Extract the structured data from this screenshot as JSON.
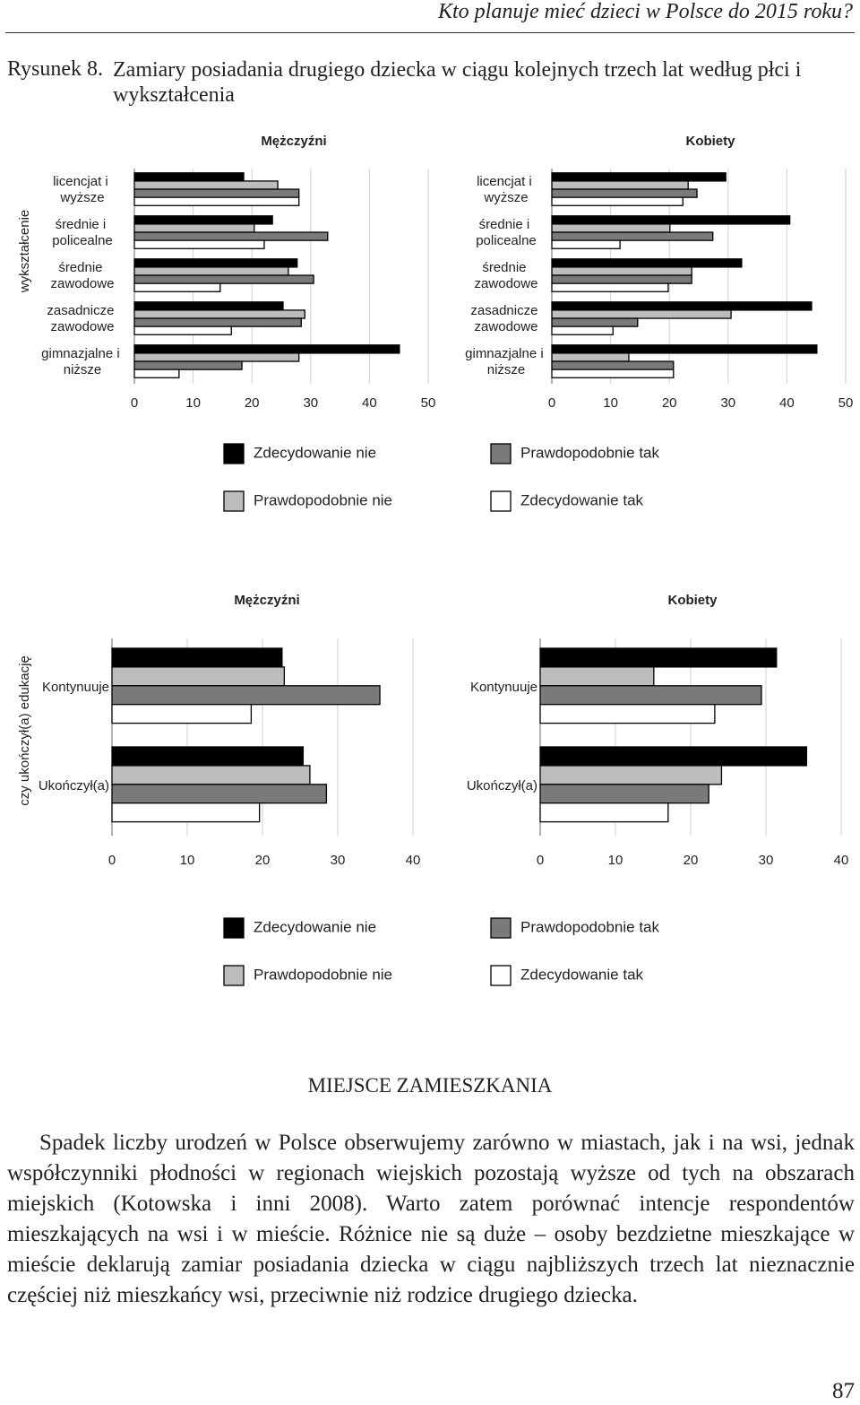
{
  "header": {
    "title": "Kto planuje mieć dzieci w Polsce do 2015 roku?"
  },
  "figure": {
    "label": "Rysunek 8.",
    "caption": "Zamiary posiadania drugiego dziecka w ciągu kolejnych trzech lat według płci i wykształcenia"
  },
  "chart_data": [
    {
      "type": "bar",
      "orientation": "horizontal",
      "y_label": "wykształcenie",
      "grid": true,
      "xlim": [
        0,
        50
      ],
      "xticks": [
        0,
        10,
        20,
        30,
        40,
        50
      ],
      "series": [
        {
          "name": "Zdecydowanie nie",
          "color": "#000000"
        },
        {
          "name": "Prawdopodobnie nie",
          "color": "#bdbdbd"
        },
        {
          "name": "Prawdopodobnie tak",
          "color": "#7a7a7a"
        },
        {
          "name": "Zdecydowanie tak",
          "color": "#ffffff"
        }
      ],
      "panels": [
        {
          "title": "Mężczyźni",
          "categories": [
            "licencjat i wyższe",
            "średnie i policealne",
            "średnie zawodowe",
            "zasadnicze zawodowe",
            "gimnazjalne i niższe"
          ],
          "values": [
            [
              18.6,
              23.5,
              27.7,
              25.3,
              45.1
            ],
            [
              24.4,
              20.4,
              26.2,
              29.0,
              28.0
            ],
            [
              28.0,
              32.9,
              30.5,
              28.4,
              18.3
            ],
            [
              28.0,
              22.1,
              14.6,
              16.5,
              7.6
            ]
          ]
        },
        {
          "title": "Kobiety",
          "categories": [
            "licencjat i wyższe",
            "średnie i policealne",
            "średnie zawodowe",
            "zasadnicze zawodowe",
            "gimnazjalne i niższe"
          ],
          "values": [
            [
              29.6,
              40.5,
              32.3,
              44.2,
              45.1
            ],
            [
              23.2,
              20.1,
              23.8,
              30.5,
              13.1
            ],
            [
              24.7,
              27.4,
              23.8,
              14.6,
              20.7
            ],
            [
              22.3,
              11.6,
              19.8,
              10.4,
              20.7
            ]
          ]
        }
      ]
    },
    {
      "type": "bar",
      "orientation": "horizontal",
      "y_label": "czy ukończył(a) edukację",
      "grid": true,
      "xlim": [
        0,
        40
      ],
      "xticks": [
        0,
        10,
        20,
        30,
        40
      ],
      "series": [
        {
          "name": "Zdecydowanie nie",
          "color": "#000000"
        },
        {
          "name": "Prawdopodobnie nie",
          "color": "#bdbdbd"
        },
        {
          "name": "Prawdopodobnie tak",
          "color": "#7a7a7a"
        },
        {
          "name": "Zdecydowanie tak",
          "color": "#ffffff"
        }
      ],
      "panels": [
        {
          "title": "Mężczyźni",
          "categories": [
            "Kontynuuje",
            "Ukończył(a)"
          ],
          "values": [
            [
              22.6,
              25.4
            ],
            [
              22.9,
              26.3
            ],
            [
              35.6,
              28.5
            ],
            [
              18.5,
              19.6
            ]
          ]
        },
        {
          "title": "Kobiety",
          "categories": [
            "Kontynuuje",
            "Ukończył(a)"
          ],
          "values": [
            [
              31.4,
              35.4
            ],
            [
              15.1,
              24.1
            ],
            [
              29.4,
              22.4
            ],
            [
              23.2,
              17.0
            ]
          ]
        }
      ]
    }
  ],
  "section": {
    "heading": "MIEJSCE ZAMIESZKANIA",
    "paragraph": "Spadek liczby urodzeń w Polsce obserwujemy zarówno w miastach, jak i na wsi, jednak współczynniki płodności w regionach wiejskich pozostają wyższe od tych na obszarach miejskich (Kotowska i inni 2008). Warto zatem porównać intencje respondentów mieszkających na wsi i w mieście. Różnice nie są duże – osoby bezdzietne mieszkające w mieście deklarują zamiar posiadania dziecka w ciągu najbliższych trzech lat nieznacznie częściej niż mieszkańcy wsi, przeciwnie niż rodzice drugiego dziecka."
  },
  "footer": {
    "page_number": "87"
  }
}
